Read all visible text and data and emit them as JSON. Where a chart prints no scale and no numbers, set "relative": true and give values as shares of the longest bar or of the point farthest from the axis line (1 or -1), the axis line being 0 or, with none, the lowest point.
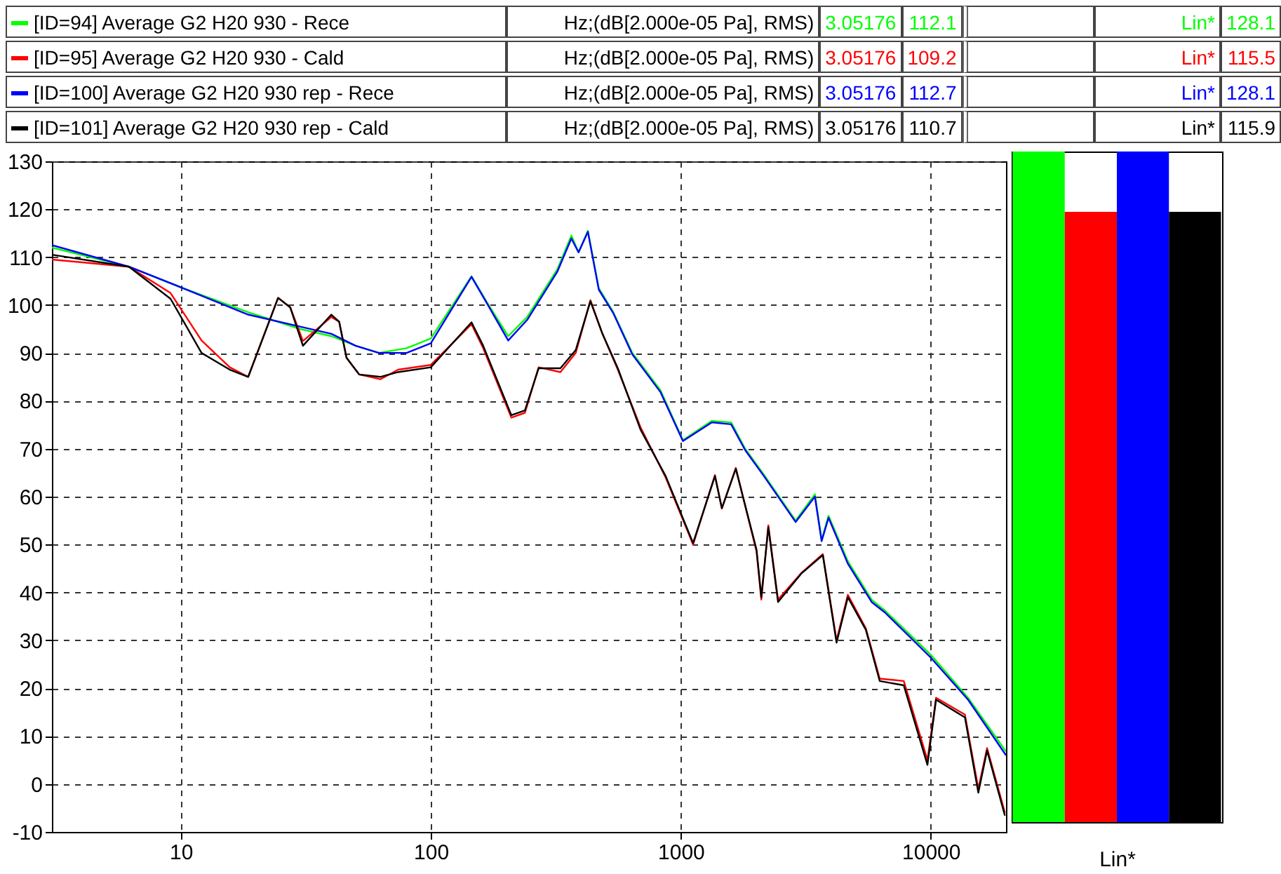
{
  "chart_data": [
    {
      "type": "line",
      "legend": "top",
      "grid": true,
      "log": "x",
      "xlim": [
        3.05,
        20000
      ],
      "xticks": [
        10,
        100,
        1000,
        10000
      ],
      "ylim": [
        -10,
        130
      ],
      "yticks": [
        -10,
        0,
        10,
        20,
        30,
        40,
        50,
        60,
        70,
        80,
        90,
        100,
        110,
        120,
        130
      ],
      "annotations": [
        "Hz;(dB[2.000e-05 Pa], RMS)",
        "3.05176",
        "112.1",
        "Hz;(dB[2.000e-05 Pa], RMS)",
        "3.05176",
        "109.2",
        "Hz;(dB[2.000e-05 Pa], RMS)",
        "3.05176",
        "112.7",
        "Hz;(dB[2.000e-05 Pa], RMS)",
        "3.05176",
        "110.7"
      ],
      "series": [
        {
          "name": "[ID=94] Average G2 H20 930 - Rece",
          "color": "#00ff00",
          "x": [
            3.05,
            6.2,
            10,
            18.6,
            30,
            40,
            50,
            62,
            80,
            100,
            145.5,
            168,
            204,
            243,
            321,
            365,
            390,
            425,
            470,
            536,
            640,
            830,
            1020,
            1330,
            1590,
            1810,
            2150,
            2880,
            3440,
            3660,
            3900,
            4660,
            5800,
            6560,
            10000,
            14100,
            20000
          ],
          "values": [
            112,
            108,
            103.7,
            98.5,
            95,
            93.5,
            91.5,
            90,
            91,
            93,
            106,
            100.5,
            93.5,
            97.5,
            107.5,
            114.5,
            111,
            115.5,
            103.5,
            98.6,
            90,
            82.2,
            71.8,
            75.8,
            75.5,
            70,
            64.6,
            55,
            60.5,
            51,
            56,
            46.5,
            38.5,
            36.2,
            27,
            18,
            6.8
          ]
        },
        {
          "name": "[ID=95] Average G2 H20 930 - Cald",
          "color": "#ff0000",
          "x": [
            3.05,
            6.2,
            9.1,
            12.1,
            15.7,
            18.6,
            24.5,
            27.4,
            30.8,
            40,
            43,
            46,
            51.7,
            62.8,
            74,
            100,
            145.5,
            162,
            210,
            238,
            270,
            330,
            380,
            435,
            486,
            560,
            690,
            870,
            1120,
            1370,
            1460,
            1660,
            2010,
            2100,
            2240,
            2450,
            3030,
            3700,
            4200,
            4660,
            5500,
            6250,
            7800,
            9700,
            10500,
            13700,
            15500,
            16800,
            19800
          ],
          "values": [
            109.5,
            108,
            102.5,
            92.6,
            87,
            85,
            101.5,
            99.5,
            92.5,
            97.5,
            96.5,
            89,
            85.5,
            84.5,
            86.5,
            87.5,
            96,
            91,
            76.5,
            77.5,
            87,
            86,
            90,
            101,
            94,
            86.5,
            74.5,
            64,
            50,
            64.5,
            57.5,
            66,
            48.5,
            38.5,
            54,
            38.5,
            44,
            48,
            30,
            39.5,
            32.5,
            22,
            21.5,
            5,
            18,
            14.5,
            -1,
            7.5,
            -6
          ]
        },
        {
          "name": "[ID=100] Average G2 H20 930 rep - Rece",
          "color": "#0000ff",
          "x": [
            3.05,
            6.2,
            10,
            18.6,
            30,
            40,
            50,
            62,
            80,
            100,
            145.5,
            168,
            204,
            243,
            321,
            365,
            390,
            425,
            470,
            536,
            640,
            830,
            1020,
            1330,
            1590,
            1810,
            2150,
            2880,
            3440,
            3660,
            3900,
            4660,
            5800,
            6560,
            10000,
            14100,
            20000
          ],
          "values": [
            112.5,
            108,
            103.7,
            98,
            95.5,
            94,
            91.5,
            90,
            90,
            92,
            105.9,
            100.3,
            92.6,
            96.9,
            107,
            113.9,
            111,
            115.3,
            103.2,
            98.4,
            89.7,
            81.8,
            71.6,
            75.5,
            75.1,
            69.7,
            64.3,
            54.7,
            60,
            50.7,
            55.6,
            46,
            38,
            35.8,
            26.4,
            17.6,
            6
          ]
        },
        {
          "name": "[ID=101] Average G2 H20 930 rep - Cald",
          "color": "#000000",
          "x": [
            3.05,
            6.2,
            9.1,
            12.1,
            15.7,
            18.6,
            24.5,
            27.4,
            30.8,
            40,
            43,
            46,
            51.7,
            62.8,
            74,
            100,
            145.5,
            162,
            210,
            238,
            270,
            330,
            380,
            435,
            486,
            560,
            690,
            870,
            1120,
            1370,
            1460,
            1660,
            2010,
            2100,
            2240,
            2450,
            3030,
            3700,
            4200,
            4660,
            5500,
            6250,
            7800,
            9700,
            10500,
            13700,
            15500,
            16800,
            19800
          ],
          "values": [
            110.5,
            108,
            101.3,
            90,
            86.5,
            85,
            101.5,
            99.5,
            91.5,
            98,
            96.5,
            89,
            85.5,
            85,
            86,
            87,
            96.4,
            91.5,
            77,
            78,
            86.8,
            86.8,
            90.6,
            100.8,
            94,
            86.8,
            74,
            64.3,
            50.3,
            64.3,
            57.6,
            65.8,
            48.9,
            39,
            53.6,
            38,
            43.9,
            47.8,
            29.5,
            39,
            32.2,
            21.5,
            20.6,
            4,
            17.6,
            13.9,
            -1.8,
            7,
            -6.6
          ]
        }
      ]
    },
    {
      "type": "bar",
      "categories": [
        null,
        null,
        null,
        null
      ],
      "xlabel": "Lin*",
      "relative": true,
      "values": [
        1,
        0.91,
        1,
        0.91
      ],
      "colors": [
        "#00ff00",
        "#ff0000",
        "#0000ff",
        "#000000"
      ],
      "annotations": [
        "Lin*",
        "128.1",
        "Lin*",
        "115.5",
        "Lin*",
        "128.1",
        "Lin*",
        "115.9"
      ]
    }
  ]
}
